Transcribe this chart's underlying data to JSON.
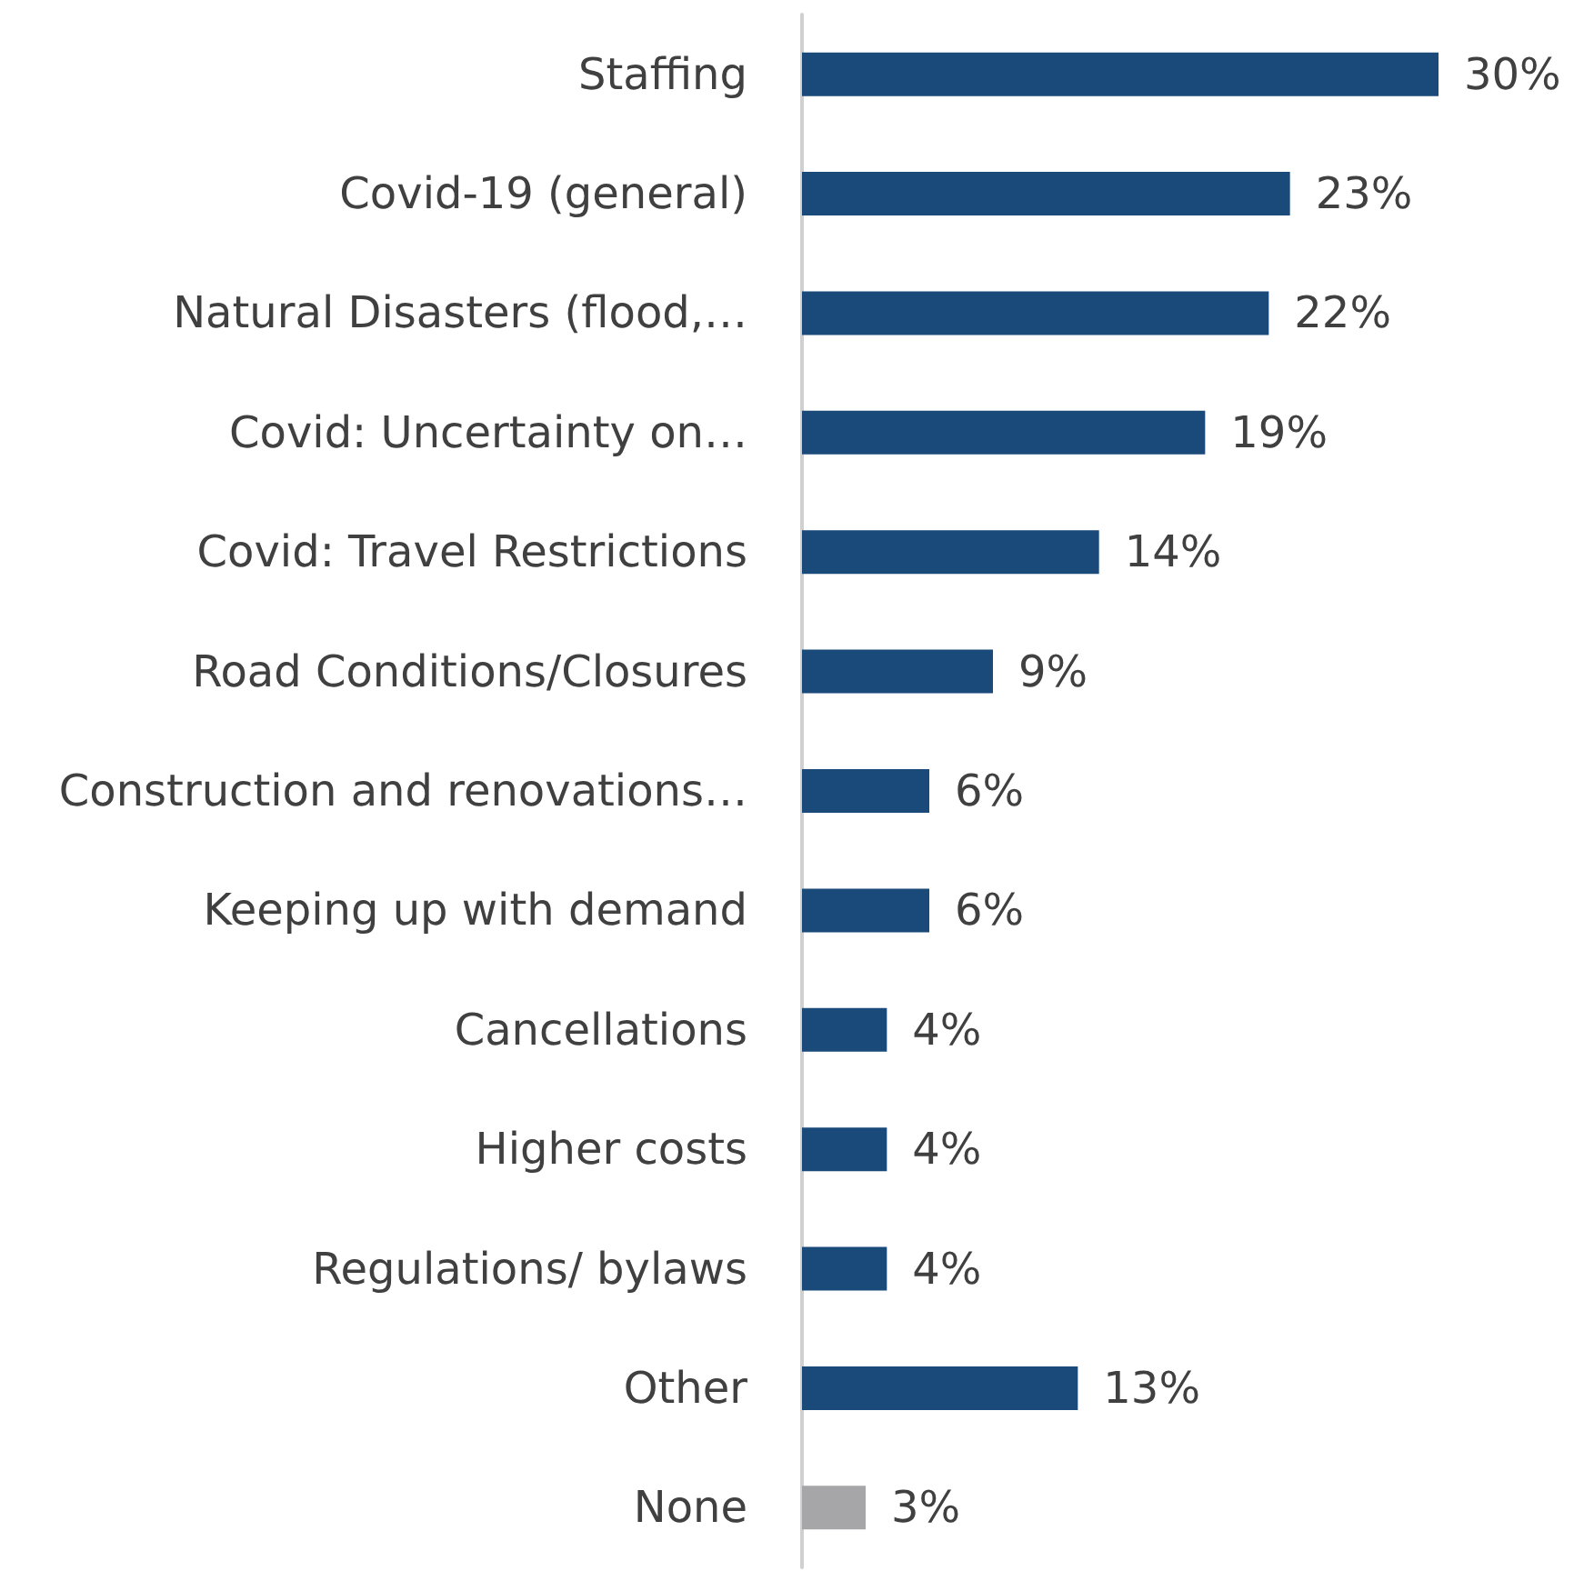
{
  "chart_data": {
    "type": "bar",
    "orientation": "horizontal",
    "tick_labels": "y",
    "grid": false,
    "categories": [
      "Staffing",
      "Covid-19 (general)",
      "Natural Disasters (flood,…",
      "Covid: Uncertainty on…",
      "Covid: Travel Restrictions",
      "Road Conditions/Closures",
      "Construction and renovations…",
      "Keeping up with demand",
      "Cancellations",
      "Higher costs",
      "Regulations/ bylaws",
      "Other",
      "None"
    ],
    "values": [
      30,
      23,
      22,
      19,
      14,
      9,
      6,
      6,
      4,
      4,
      4,
      13,
      3
    ],
    "value_labels": [
      "30%",
      "23%",
      "22%",
      "19%",
      "14%",
      "9%",
      "6%",
      "6%",
      "4%",
      "4%",
      "4%",
      "13%",
      "3%"
    ],
    "colors": [
      "#1a4a7a",
      "#1a4a7a",
      "#1a4a7a",
      "#1a4a7a",
      "#1a4a7a",
      "#1a4a7a",
      "#1a4a7a",
      "#1a4a7a",
      "#1a4a7a",
      "#1a4a7a",
      "#1a4a7a",
      "#1a4a7a",
      "#a6a6a9"
    ]
  }
}
